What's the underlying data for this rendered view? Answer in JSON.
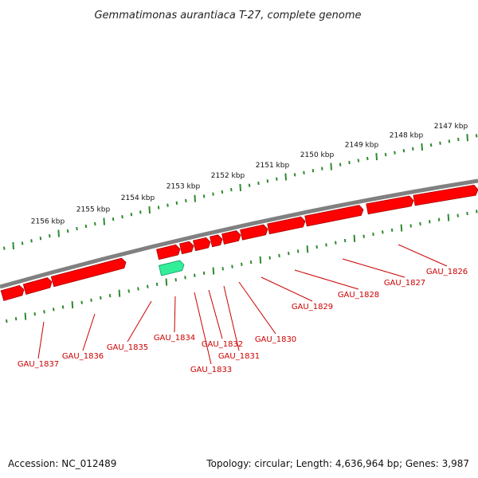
{
  "title": "Gemmatimonas aurantiaca T-27, complete genome",
  "footer": {
    "accession": "Accession: NC_012489",
    "summary": "Topology: circular; Length: 4,636,964 bp; Genes: 3,987"
  },
  "colors": {
    "backbone": "#808080",
    "gene_forward": "#ff0000",
    "gene_highlight": "#33ee99",
    "tick": "#2e8b2e",
    "label": "#cc0000"
  },
  "scale_labels": [
    "2156 kbp",
    "2155 kbp",
    "2154 kbp",
    "2153 kbp",
    "2152 kbp",
    "2151 kbp",
    "2150 kbp",
    "2149 kbp",
    "2148 kbp",
    "2147 kbp"
  ],
  "genes": [
    {
      "name": "GAU_1837",
      "highlight": false
    },
    {
      "name": "GAU_1836",
      "highlight": false
    },
    {
      "name": "GAU_1835",
      "highlight": false
    },
    {
      "name": "GAU_1834",
      "highlight": true
    },
    {
      "name": "GAU_1833",
      "highlight": false
    },
    {
      "name": "GAU_1832",
      "highlight": false
    },
    {
      "name": "GAU_1831",
      "highlight": false
    },
    {
      "name": "GAU_1830",
      "highlight": false
    },
    {
      "name": "GAU_1829",
      "highlight": false
    },
    {
      "name": "GAU_1828",
      "highlight": false
    },
    {
      "name": "GAU_1827",
      "highlight": false
    },
    {
      "name": "GAU_1826",
      "highlight": false
    }
  ]
}
